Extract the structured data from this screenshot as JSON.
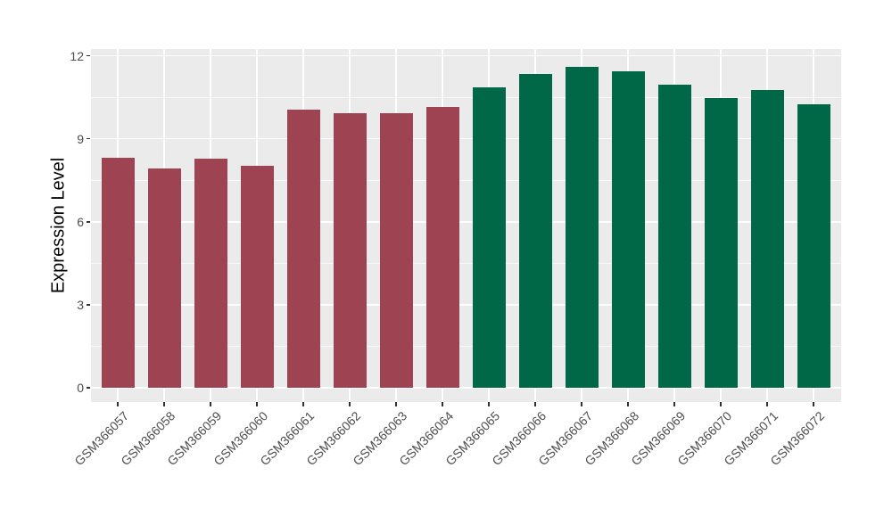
{
  "chart_data": {
    "type": "bar",
    "title": "",
    "xlabel": "",
    "ylabel": "Expression Level",
    "categories": [
      "GSM366057",
      "GSM366058",
      "GSM366059",
      "GSM366060",
      "GSM366061",
      "GSM366062",
      "GSM366063",
      "GSM366064",
      "GSM366065",
      "GSM366066",
      "GSM366067",
      "GSM366068",
      "GSM366069",
      "GSM366070",
      "GSM366071",
      "GSM366072"
    ],
    "values": [
      8.33,
      7.94,
      8.28,
      8.03,
      10.05,
      9.94,
      9.93,
      10.15,
      10.85,
      11.34,
      11.61,
      11.44,
      10.95,
      10.47,
      10.76,
      10.25
    ],
    "bar_groups": [
      "red",
      "red",
      "red",
      "red",
      "red",
      "red",
      "red",
      "red",
      "green",
      "green",
      "green",
      "green",
      "green",
      "green",
      "green",
      "green"
    ],
    "group_colors": {
      "red": "#9E4352",
      "green": "#006847"
    },
    "yticks": [
      0,
      3,
      6,
      9,
      12
    ],
    "ytick_minor": [
      1.5,
      4.5,
      7.5,
      10.5
    ],
    "ylim": [
      -0.5,
      12.25
    ],
    "grid": "on",
    "legend": "none",
    "colors": {
      "panel_background": "#EBEBEB",
      "gridline": "#FFFFFF",
      "page_background": "#FFFFFF",
      "axis_text": "#4d4d4d",
      "axis_title": "#000000",
      "tick_mark": "#333333"
    }
  }
}
